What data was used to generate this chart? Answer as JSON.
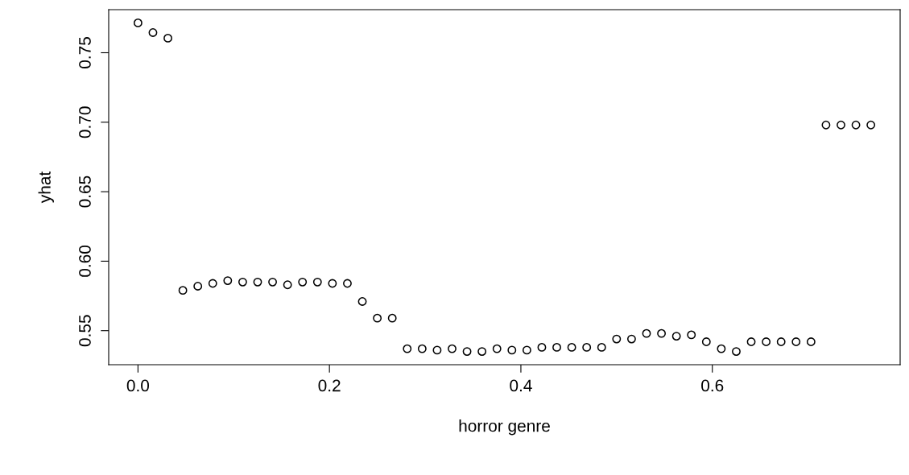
{
  "chart_data": {
    "type": "scatter",
    "xlabel": "horror genre",
    "ylabel": "yhat",
    "x": [
      0,
      0.015625,
      0.03125,
      0.046875,
      0.0625,
      0.078125,
      0.09375,
      0.109375,
      0.125,
      0.140625,
      0.15625,
      0.171875,
      0.1875,
      0.203125,
      0.21875,
      0.234375,
      0.25,
      0.265625,
      0.28125,
      0.296875,
      0.3125,
      0.328125,
      0.34375,
      0.359375,
      0.375,
      0.390625,
      0.40625,
      0.421875,
      0.4375,
      0.453125,
      0.46875,
      0.484375,
      0.5,
      0.515625,
      0.53125,
      0.546875,
      0.5625,
      0.578125,
      0.59375,
      0.609375,
      0.625,
      0.640625,
      0.65625,
      0.671875,
      0.6875,
      0.703125,
      0.71875,
      0.734375,
      0.75,
      0.765625
    ],
    "series": [
      {
        "color": "#000000",
        "values": [
          0.7715,
          0.7645,
          0.7605,
          0.579,
          0.582,
          0.584,
          0.586,
          0.585,
          0.585,
          0.585,
          0.583,
          0.585,
          0.585,
          0.584,
          0.584,
          0.571,
          0.559,
          0.559,
          0.537,
          0.537,
          0.536,
          0.537,
          0.535,
          0.535,
          0.537,
          0.536,
          0.536,
          0.538,
          0.538,
          0.538,
          0.538,
          0.538,
          0.544,
          0.544,
          0.548,
          0.548,
          0.546,
          0.547,
          0.542,
          0.537,
          0.535,
          0.542,
          0.542,
          0.542,
          0.542,
          0.542,
          0.698,
          0.698,
          0.698,
          0.698
        ]
      }
    ],
    "marker": "circle",
    "grid": false,
    "legend": false,
    "xlim": [
      -0.0306,
      0.7962
    ],
    "ylim": [
      0.5255,
      0.781
    ],
    "xticks": [
      {
        "value": 0,
        "label": "0.0"
      },
      0.2,
      0.4,
      0.6
    ],
    "yticks": [
      0.55,
      {
        "value": 0.6,
        "label": "0.60"
      },
      0.65,
      {
        "value": 0.7,
        "label": "0.70"
      },
      0.75
    ]
  }
}
